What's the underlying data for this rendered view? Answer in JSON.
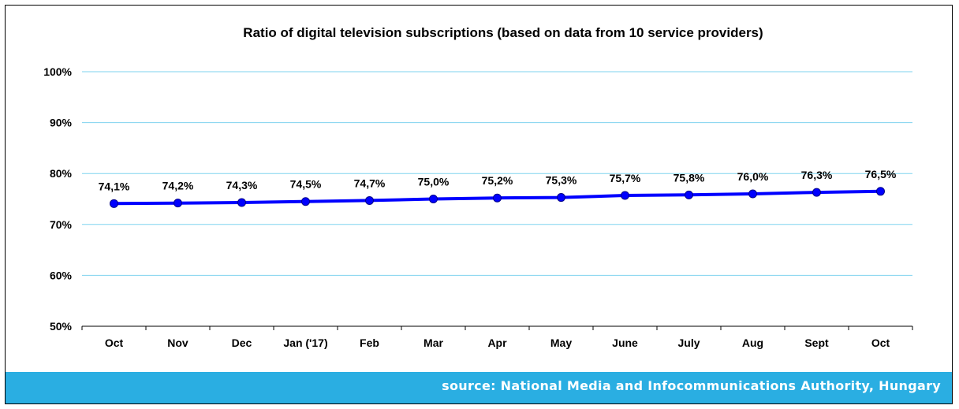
{
  "colors": {
    "line": "#0000ff",
    "grid": "#7fd3ef",
    "footer_bg": "#2aaee2",
    "footer_text": "#ffffff",
    "text": "#000000"
  },
  "source": "source: National Media and Infocommunications Authority, Hungary",
  "chart_data": {
    "type": "line",
    "title": "Ratio of digital television subscriptions (based on data from 10 service providers)",
    "xlabel": "",
    "ylabel": "",
    "categories": [
      "Oct",
      "Nov",
      "Dec",
      "Jan ('17)",
      "Feb",
      "Mar",
      "Apr",
      "May",
      "June",
      "July",
      "Aug",
      "Sept",
      "Oct"
    ],
    "values": [
      74.1,
      74.2,
      74.3,
      74.5,
      74.7,
      75.0,
      75.2,
      75.3,
      75.7,
      75.8,
      76.0,
      76.3,
      76.5
    ],
    "data_labels": [
      "74,1%",
      "74,2%",
      "74,3%",
      "74,5%",
      "74,7%",
      "75,0%",
      "75,2%",
      "75,3%",
      "75,7%",
      "75,8%",
      "76,0%",
      "76,3%",
      "76,5%"
    ],
    "ylim": [
      50,
      100
    ],
    "yticks": [
      100,
      90,
      80,
      70,
      60,
      50
    ],
    "ytick_labels": [
      "100%",
      "90%",
      "80%",
      "70%",
      "60%",
      "50%"
    ],
    "grid": true,
    "legend": "none"
  }
}
